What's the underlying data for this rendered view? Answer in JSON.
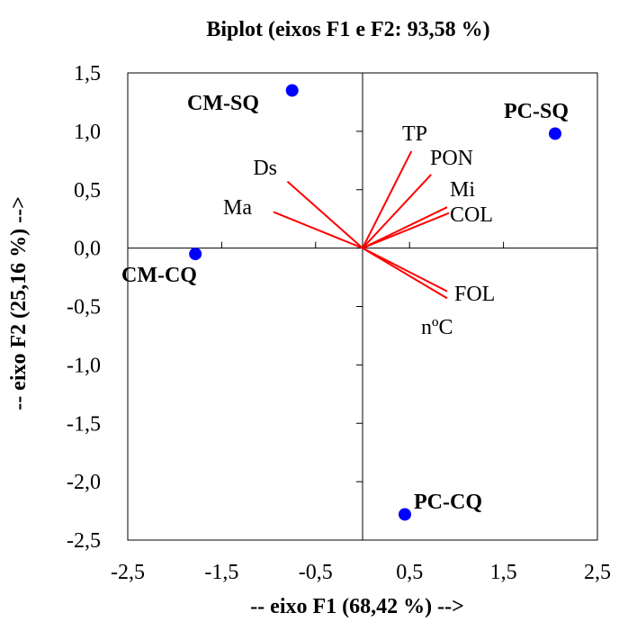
{
  "chart_data": {
    "type": "scatter",
    "title": "Biplot (eixos F1 e F2: 93,58 %)",
    "xlabel": "-- eixo F1 (68,42 %) -->",
    "ylabel": "-- eixo F2 (25,16 %) -->",
    "xlim": [
      -2.5,
      2.5
    ],
    "ylim": [
      -2.5,
      1.5
    ],
    "xticks": [
      "-2,5",
      "-1,5",
      "-0,5",
      "0,5",
      "1,5",
      "2,5"
    ],
    "xtick_values": [
      -2.5,
      -1.5,
      -0.5,
      0.5,
      1.5,
      2.5
    ],
    "yticks": [
      "1,5",
      "1,0",
      "0,5",
      "0,0",
      "-0,5",
      "-1,0",
      "-1,5",
      "-2,0",
      "-2,5"
    ],
    "ytick_values": [
      1.5,
      1.0,
      0.5,
      0.0,
      -0.5,
      -1.0,
      -1.5,
      -2.0,
      -2.5
    ],
    "grid": false,
    "point_color": "#0000ff",
    "vector_color": "#ff0000",
    "points": [
      {
        "label": "CM-SQ",
        "x": -0.75,
        "y": 1.35
      },
      {
        "label": "PC-SQ",
        "x": 2.05,
        "y": 0.98
      },
      {
        "label": "CM-CQ",
        "x": -1.78,
        "y": -0.05
      },
      {
        "label": "PC-CQ",
        "x": 0.45,
        "y": -2.28
      }
    ],
    "vectors": [
      {
        "label": "TP",
        "x": 0.52,
        "y": 0.83
      },
      {
        "label": "PON",
        "x": 0.73,
        "y": 0.63
      },
      {
        "label": "Mi",
        "x": 0.9,
        "y": 0.35
      },
      {
        "label": "COL",
        "x": 0.92,
        "y": 0.3
      },
      {
        "label": "FOL",
        "x": 0.9,
        "y": -0.37
      },
      {
        "label": "nºC",
        "x": 0.9,
        "y": -0.43
      },
      {
        "label": "Ds",
        "x": -0.8,
        "y": 0.57
      },
      {
        "label": "Ma",
        "x": -0.95,
        "y": 0.31
      }
    ]
  }
}
